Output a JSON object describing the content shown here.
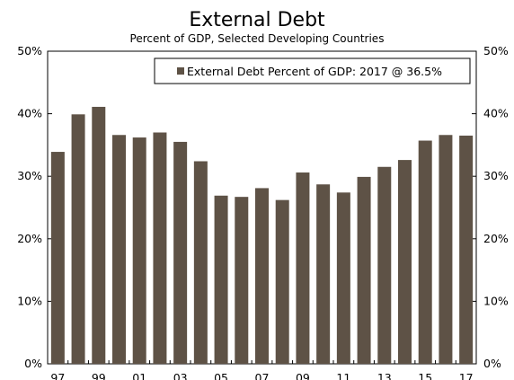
{
  "chart_data": {
    "type": "bar",
    "title": "External Debt",
    "subtitle": "Percent of GDP, Selected Developing Countries",
    "categories": [
      "97",
      "98",
      "99",
      "00",
      "01",
      "02",
      "03",
      "04",
      "05",
      "06",
      "07",
      "08",
      "09",
      "10",
      "11",
      "12",
      "13",
      "14",
      "15",
      "16",
      "17"
    ],
    "tick_labels": [
      "97",
      "",
      "99",
      "",
      "01",
      "",
      "03",
      "",
      "05",
      "",
      "07",
      "",
      "09",
      "",
      "11",
      "",
      "13",
      "",
      "15",
      "",
      "17"
    ],
    "series": [
      {
        "name": "External Debt Percent of GDP: 2017 @ 36.5%",
        "color": "#5e5246",
        "values": [
          33.9,
          39.9,
          41.1,
          36.6,
          36.2,
          37.0,
          35.5,
          32.4,
          26.9,
          26.7,
          28.1,
          26.2,
          30.6,
          28.7,
          27.4,
          29.9,
          31.5,
          32.6,
          35.7,
          36.6,
          36.5
        ]
      }
    ],
    "ylim": [
      0,
      50
    ],
    "yticks": [
      0,
      10,
      20,
      30,
      40,
      50
    ],
    "ytick_labels": [
      "0%",
      "10%",
      "20%",
      "30%",
      "40%",
      "50%"
    ],
    "legend_position": "top-right",
    "grid": false
  }
}
